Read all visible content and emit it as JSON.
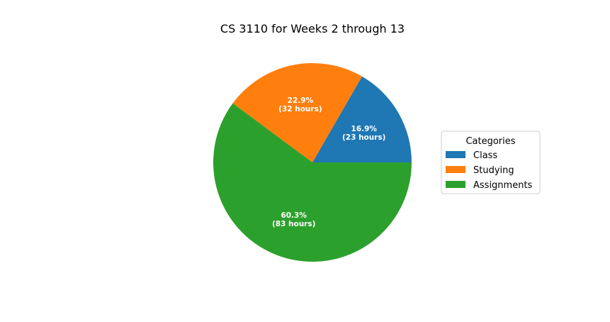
{
  "chart_data": {
    "type": "pie",
    "title": "CS 3110 for Weeks 2 through 13",
    "start_angle_deg": 0,
    "direction": "counterclockwise",
    "slices": [
      {
        "name": "Class",
        "value": 23,
        "percent_label": "16.9%",
        "hours_label": "(23 hours)",
        "color": "#1f77b4"
      },
      {
        "name": "Studying",
        "value": 32,
        "percent_label": "22.9%",
        "hours_label": "(32 hours)",
        "color": "#ff7f0e"
      },
      {
        "name": "Assignments",
        "value": 83,
        "percent_label": "60.3%",
        "hours_label": "(83 hours)",
        "color": "#2ca02c"
      }
    ],
    "legend": {
      "title": "Categories",
      "placement": "right",
      "entries": [
        "Class",
        "Studying",
        "Assignments"
      ]
    }
  }
}
